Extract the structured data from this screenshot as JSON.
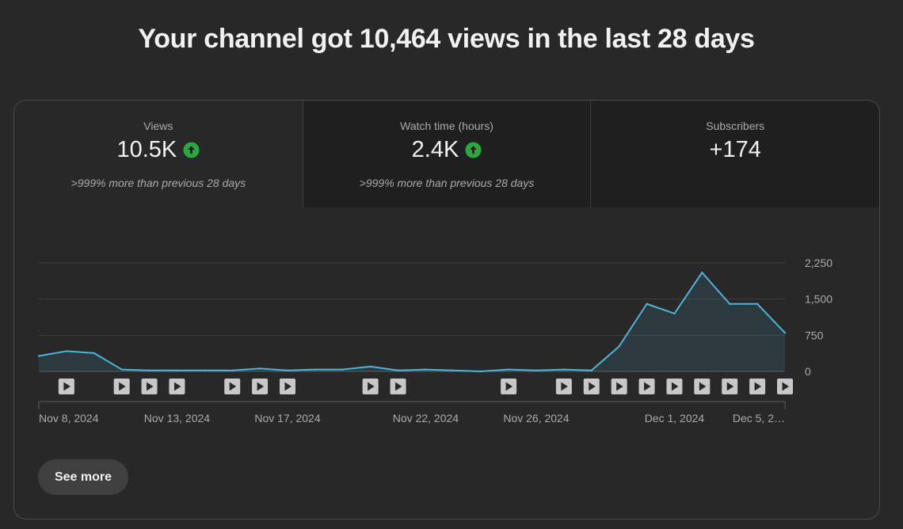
{
  "headline": "Your channel got 10,464 views in the last 28 days",
  "metrics": [
    {
      "label": "Views",
      "value": "10.5K",
      "comparison": ">999% more than previous 28 days",
      "trend_icon": "arrow-up-circle-icon"
    },
    {
      "label": "Watch time (hours)",
      "value": "2.4K",
      "comparison": ">999% more than previous 28 days",
      "trend_icon": "arrow-up-circle-icon"
    },
    {
      "label": "Subscribers",
      "value": "+174",
      "comparison": "",
      "trend_icon": ""
    }
  ],
  "colors": {
    "line": "#4fb3d9",
    "trend_up": "#2ba640",
    "background": "#282828"
  },
  "see_more_label": "See more",
  "chart_data": {
    "type": "area",
    "title": "",
    "xlabel": "",
    "ylabel": "",
    "ylim": [
      0,
      2250
    ],
    "y_ticks": [
      "2,250",
      "1,500",
      "750",
      "0"
    ],
    "y_tick_values": [
      2250,
      1500,
      750,
      0
    ],
    "x": [
      "Nov 8",
      "Nov 9",
      "Nov 10",
      "Nov 11",
      "Nov 12",
      "Nov 13",
      "Nov 14",
      "Nov 15",
      "Nov 16",
      "Nov 17",
      "Nov 18",
      "Nov 19",
      "Nov 20",
      "Nov 21",
      "Nov 22",
      "Nov 23",
      "Nov 24",
      "Nov 25",
      "Nov 26",
      "Nov 27",
      "Nov 28",
      "Nov 29",
      "Nov 30",
      "Dec 1",
      "Dec 2",
      "Dec 3",
      "Dec 4",
      "Dec 5"
    ],
    "x_tick_labels": [
      {
        "label": "Nov 8, 2024",
        "index": 0
      },
      {
        "label": "Nov 13, 2024",
        "index": 5
      },
      {
        "label": "Nov 17, 2024",
        "index": 9
      },
      {
        "label": "Nov 22, 2024",
        "index": 14
      },
      {
        "label": "Nov 26, 2024",
        "index": 18
      },
      {
        "label": "Dec 1, 2024",
        "index": 23
      },
      {
        "label": "Dec 5, 2…",
        "index": 27
      }
    ],
    "series": [
      {
        "values": [
          320,
          420,
          380,
          40,
          20,
          20,
          20,
          20,
          60,
          20,
          40,
          40,
          100,
          20,
          40,
          20,
          0,
          40,
          20,
          40,
          20,
          520,
          1400,
          1200,
          2050,
          1400,
          1400,
          800
        ]
      }
    ],
    "video_marker_indices": [
      1,
      3,
      4,
      5,
      7,
      8,
      9,
      12,
      13,
      17,
      19,
      20,
      21,
      22,
      23,
      24,
      25,
      26,
      27
    ],
    "grid": true,
    "legend": "none"
  }
}
